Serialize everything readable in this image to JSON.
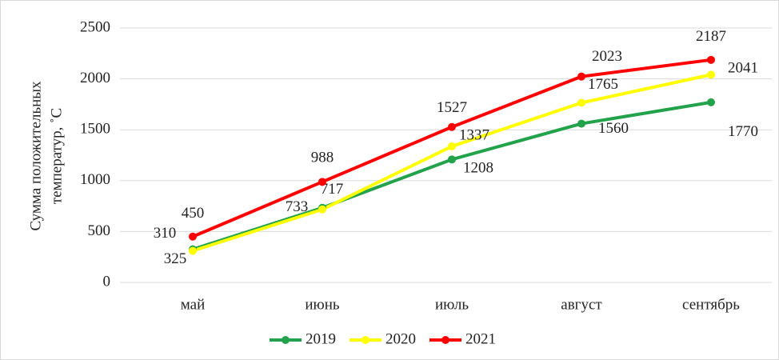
{
  "chart_data": {
    "type": "line",
    "ylabel": [
      "Сумма положительных",
      "температур, ˚С"
    ],
    "categories": [
      "май",
      "июнь",
      "июль",
      "август",
      "сентябрь"
    ],
    "series": [
      {
        "name": "2019",
        "color": "#22a24a",
        "values": [
          325,
          733,
          1208,
          1560,
          1770
        ]
      },
      {
        "name": "2020",
        "color": "#ffff00",
        "values": [
          310,
          717,
          1337,
          1765,
          2041
        ]
      },
      {
        "name": "2021",
        "color": "#ff0000",
        "values": [
          450,
          988,
          1527,
          2023,
          2187
        ]
      }
    ],
    "ylim": [
      0,
      2500
    ],
    "yticks": [
      0,
      500,
      1000,
      1500,
      2000,
      2500
    ],
    "grid": true,
    "legend": "bottom"
  }
}
